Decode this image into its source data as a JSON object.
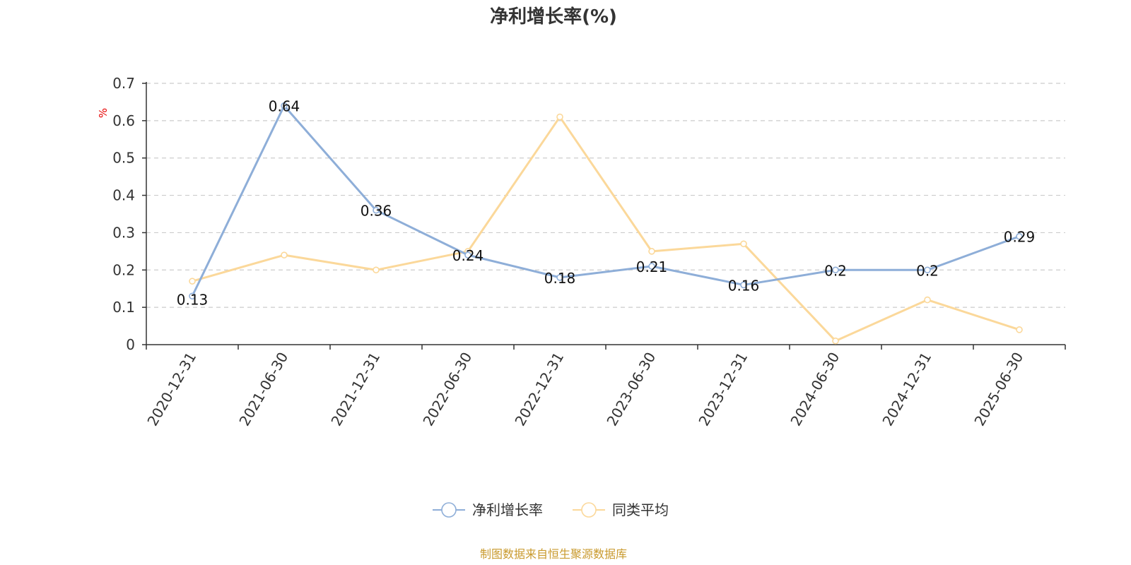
{
  "chart_data": {
    "type": "line",
    "title": "净利增长率(%)",
    "ylabel": "%",
    "xlabel": "",
    "ylim": [
      0,
      0.7
    ],
    "yticks": [
      "0",
      "0.1",
      "0.2",
      "0.3",
      "0.4",
      "0.5",
      "0.6",
      "0.7"
    ],
    "categories": [
      "2020-12-31",
      "2021-06-30",
      "2021-12-31",
      "2022-06-30",
      "2022-12-31",
      "2023-06-30",
      "2023-12-31",
      "2024-06-30",
      "2024-12-31",
      "2025-06-30"
    ],
    "series": [
      {
        "name": "净利增长率",
        "color": "#8eaed8",
        "values": [
          0.13,
          0.64,
          0.36,
          0.24,
          0.18,
          0.21,
          0.16,
          0.2,
          0.2,
          0.29
        ],
        "labels": [
          "0.13",
          "0.64",
          "0.36",
          "0.24",
          "0.18",
          "0.21",
          "0.16",
          "0.2",
          "0.2",
          "0.29"
        ]
      },
      {
        "name": "同类平均",
        "color": "#fbd89a",
        "values": [
          0.17,
          0.24,
          0.2,
          0.25,
          0.61,
          0.25,
          0.27,
          0.01,
          0.12,
          0.04
        ]
      }
    ],
    "grid": true,
    "legend_position": "bottom-center"
  },
  "source": "制图数据来自恒生聚源数据库"
}
